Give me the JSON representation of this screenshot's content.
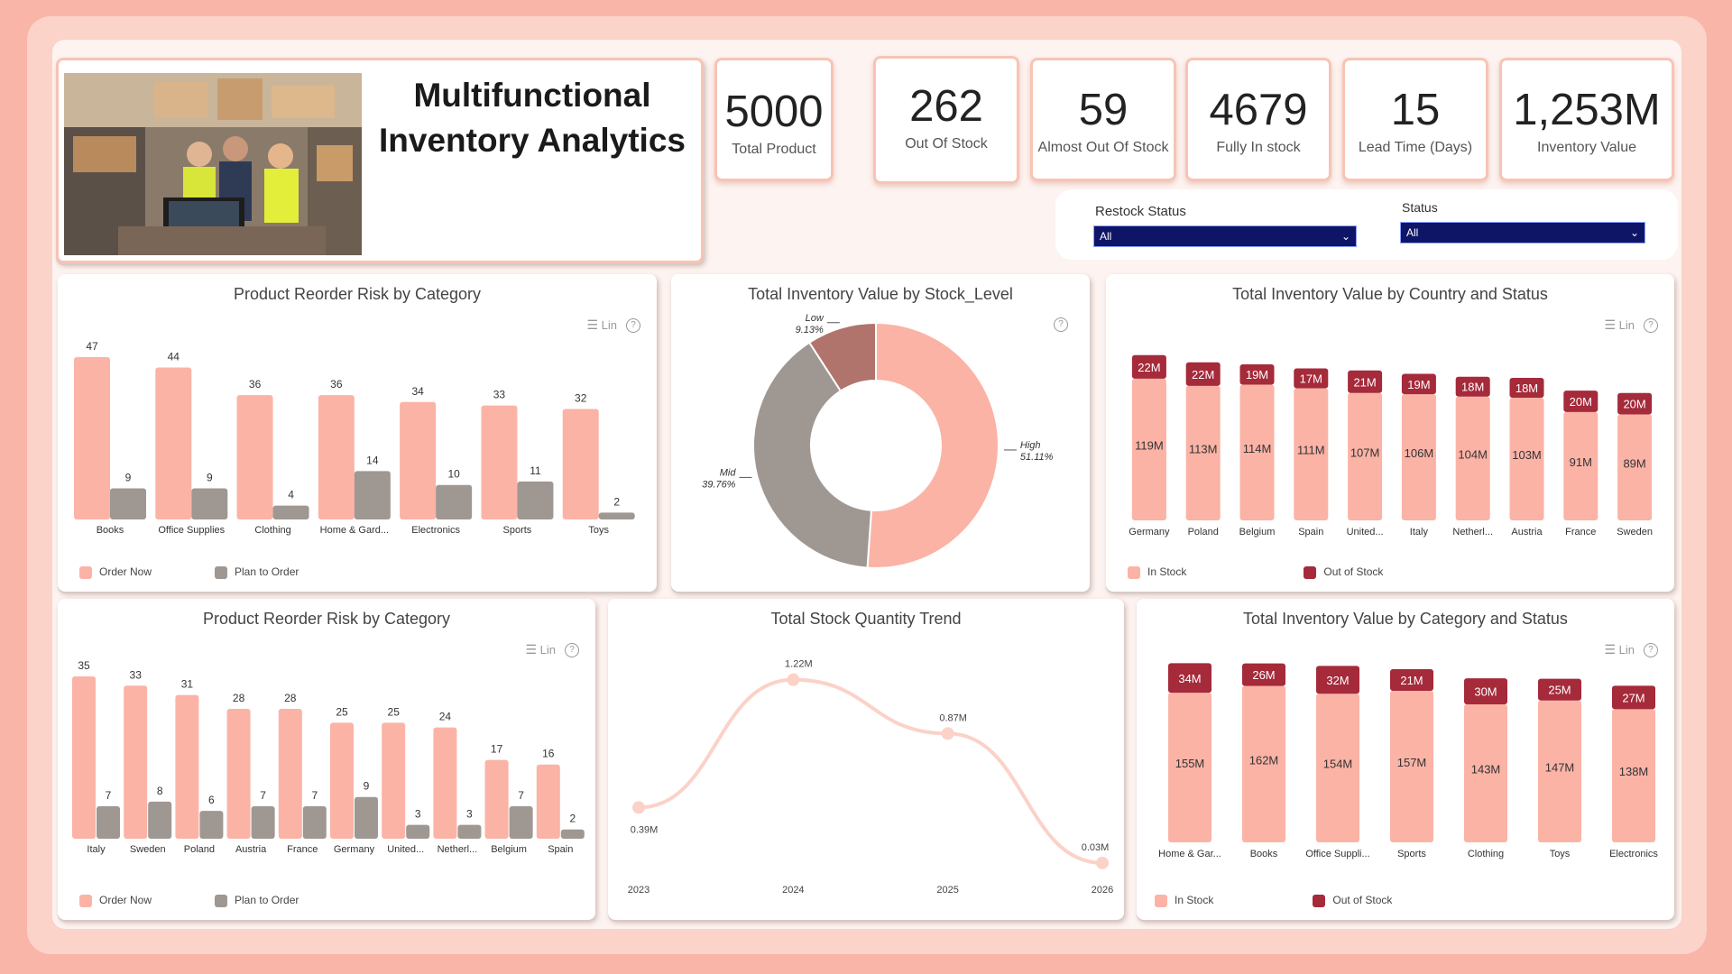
{
  "header": {
    "title_line1": "Multifunctional",
    "title_line2": "Inventory Analytics"
  },
  "kpis": [
    {
      "value": "5000",
      "label": "Total Product"
    },
    {
      "value": "262",
      "label": "Out Of Stock"
    },
    {
      "value": "59",
      "label": "Almost Out Of Stock"
    },
    {
      "value": "4679",
      "label": "Fully In stock"
    },
    {
      "value": "15",
      "label": "Lead Time (Days)"
    },
    {
      "value": "1,253M",
      "label": "Inventory Value"
    }
  ],
  "filters": {
    "restock": {
      "label": "Restock Status",
      "value": "All"
    },
    "status": {
      "label": "Status",
      "value": "All"
    }
  },
  "visual_controls": {
    "lin_label": "Lin",
    "help_glyph": "?"
  },
  "colors": {
    "salmon": "#fbb3a6",
    "gray": "#9f9792",
    "maroon": "#a52a3a",
    "frame": "#f9b5a7"
  },
  "chart_data": [
    {
      "id": "reorder_category",
      "type": "bar",
      "title": "Product Reorder Risk by Category",
      "categories": [
        "Books",
        "Office Supplies",
        "Clothing",
        "Home & Gard...",
        "Electronics",
        "Sports",
        "Toys"
      ],
      "series": [
        {
          "name": "Order Now",
          "values": [
            47,
            44,
            36,
            36,
            34,
            33,
            32
          ]
        },
        {
          "name": "Plan to Order",
          "values": [
            9,
            9,
            4,
            14,
            10,
            11,
            2
          ]
        }
      ]
    },
    {
      "id": "stock_level",
      "type": "pie",
      "title": "Total Inventory Value by Stock_Level",
      "slices": [
        {
          "name": "High",
          "pct": "51.11%",
          "value": 51.11
        },
        {
          "name": "Mid",
          "pct": "39.76%",
          "value": 39.76
        },
        {
          "name": "Low",
          "pct": "9.13%",
          "value": 9.13
        }
      ]
    },
    {
      "id": "country_status",
      "type": "bar",
      "title": "Total Inventory Value by Country and Status",
      "categories": [
        "Germany",
        "Poland",
        "Belgium",
        "Spain",
        "United...",
        "Italy",
        "Netherl...",
        "Austria",
        "France",
        "Sweden"
      ],
      "series": [
        {
          "name": "In Stock",
          "values": [
            119,
            113,
            114,
            111,
            107,
            106,
            104,
            103,
            91,
            89
          ],
          "labels": [
            "119M",
            "113M",
            "114M",
            "111M",
            "107M",
            "106M",
            "104M",
            "103M",
            "91M",
            "89M"
          ]
        },
        {
          "name": "Out of Stock",
          "values": [
            22,
            22,
            19,
            17,
            21,
            19,
            18,
            18,
            20,
            20
          ],
          "labels": [
            "22M",
            "22M",
            "19M",
            "17M",
            "21M",
            "19M",
            "18M",
            "18M",
            "20M",
            "20M"
          ]
        }
      ]
    },
    {
      "id": "reorder_country",
      "type": "bar",
      "title": "Product Reorder Risk by Category",
      "categories": [
        "Italy",
        "Sweden",
        "Poland",
        "Austria",
        "France",
        "Germany",
        "United...",
        "Netherl...",
        "Belgium",
        "Spain"
      ],
      "series": [
        {
          "name": "Order Now",
          "values": [
            35,
            33,
            31,
            28,
            28,
            25,
            25,
            24,
            17,
            16
          ]
        },
        {
          "name": "Plan to Order",
          "values": [
            7,
            8,
            6,
            7,
            7,
            9,
            3,
            3,
            7,
            2
          ]
        }
      ]
    },
    {
      "id": "stock_trend",
      "type": "line",
      "title": "Total Stock Quantity Trend",
      "x": [
        "2023",
        "2024",
        "2025",
        "2026"
      ],
      "values": [
        0.39,
        1.22,
        0.87,
        0.03
      ],
      "labels": [
        "0.39M",
        "1.22M",
        "0.87M",
        "0.03M"
      ]
    },
    {
      "id": "category_status",
      "type": "bar",
      "title": "Total Inventory Value by Category and Status",
      "categories": [
        "Home & Gar...",
        "Books",
        "Office Suppli...",
        "Sports",
        "Clothing",
        "Toys",
        "Electronics"
      ],
      "series": [
        {
          "name": "In Stock",
          "values": [
            155,
            162,
            154,
            157,
            143,
            147,
            138
          ],
          "labels": [
            "155M",
            "162M",
            "154M",
            "157M",
            "143M",
            "147M",
            "138M"
          ]
        },
        {
          "name": "Out of Stock",
          "values": [
            34,
            26,
            32,
            21,
            30,
            25,
            27
          ],
          "labels": [
            "34M",
            "26M",
            "32M",
            "21M",
            "30M",
            "25M",
            "27M"
          ]
        }
      ]
    }
  ]
}
